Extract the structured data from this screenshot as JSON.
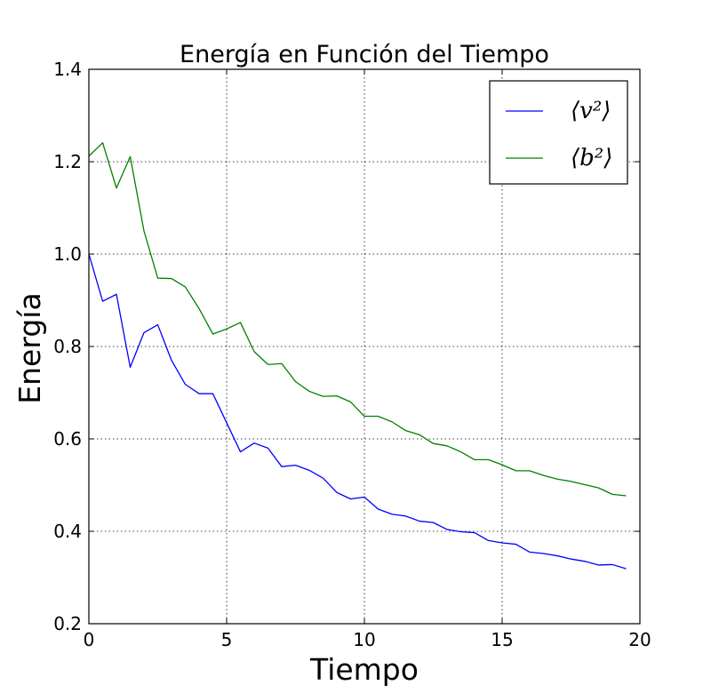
{
  "chart_data": {
    "type": "line",
    "title": "Energía en Función del Tiempo",
    "xlabel": "Tiempo",
    "ylabel": "Energía",
    "xlim": [
      0,
      20
    ],
    "ylim": [
      0.2,
      1.4
    ],
    "xticks": [
      "0",
      "5",
      "10",
      "15",
      "20"
    ],
    "yticks": [
      "0.2",
      "0.4",
      "0.6",
      "0.8",
      "1.0",
      "1.2",
      "1.4"
    ],
    "grid": true,
    "legend_position": "top-right",
    "x": [
      0,
      0.5,
      1,
      1.5,
      2,
      2.5,
      3,
      3.5,
      4,
      4.5,
      5,
      5.5,
      6,
      6.5,
      7,
      7.5,
      8,
      8.5,
      9,
      9.5,
      10,
      10.5,
      11,
      11.5,
      12,
      12.5,
      13,
      13.5,
      14,
      14.5,
      15,
      15.5,
      16,
      16.5,
      17,
      17.5,
      18,
      18.5,
      19,
      19.5
    ],
    "series": [
      {
        "name": "⟨v²⟩",
        "color": "#0000ff",
        "values": [
          1.0,
          0.898,
          0.913,
          0.755,
          0.83,
          0.847,
          0.77,
          0.718,
          0.698,
          0.698,
          0.635,
          0.572,
          0.591,
          0.58,
          0.54,
          0.543,
          0.532,
          0.515,
          0.484,
          0.47,
          0.474,
          0.448,
          0.437,
          0.433,
          0.422,
          0.419,
          0.404,
          0.399,
          0.397,
          0.38,
          0.375,
          0.372,
          0.355,
          0.352,
          0.347,
          0.34,
          0.335,
          0.327,
          0.328,
          0.319
        ]
      },
      {
        "name": "⟨b²⟩",
        "color": "#008000",
        "values": [
          1.212,
          1.241,
          1.143,
          1.211,
          1.05,
          0.948,
          0.947,
          0.929,
          0.882,
          0.827,
          0.838,
          0.852,
          0.789,
          0.761,
          0.763,
          0.724,
          0.703,
          0.692,
          0.693,
          0.68,
          0.649,
          0.649,
          0.637,
          0.618,
          0.609,
          0.59,
          0.585,
          0.572,
          0.555,
          0.555,
          0.544,
          0.531,
          0.531,
          0.521,
          0.513,
          0.508,
          0.501,
          0.494,
          0.48,
          0.477
        ]
      }
    ]
  }
}
